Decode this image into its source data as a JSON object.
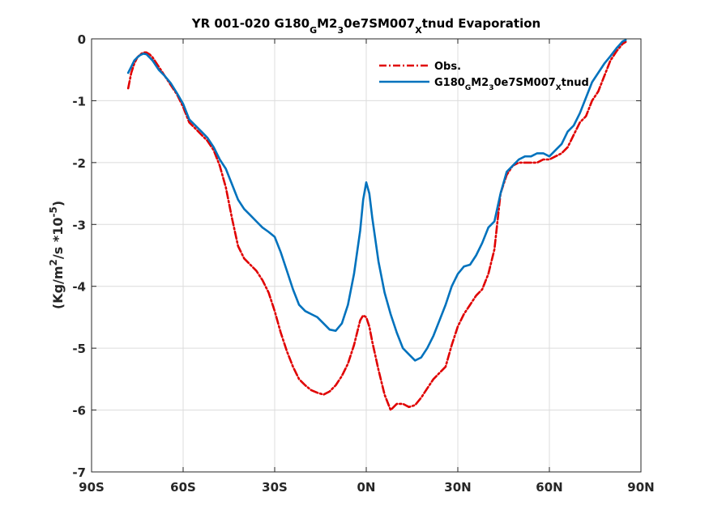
{
  "chart_data": {
    "type": "line",
    "title": {
      "parts": [
        {
          "text": "YR 001-020 G180",
          "shift": "none"
        },
        {
          "text": "G",
          "shift": "sub"
        },
        {
          "text": "M2",
          "shift": "none"
        },
        {
          "text": "3",
          "shift": "sub"
        },
        {
          "text": "0e7SM007",
          "shift": "none"
        },
        {
          "text": "X",
          "shift": "sub"
        },
        {
          "text": "tnud Evaporation",
          "shift": "none"
        }
      ]
    },
    "ylabel": {
      "parts": [
        {
          "text": "(Kg/m",
          "shift": "none"
        },
        {
          "text": "2",
          "shift": "super"
        },
        {
          "text": "/s *10",
          "shift": "none"
        },
        {
          "text": "-5",
          "shift": "super"
        },
        {
          "text": ")",
          "shift": "none"
        }
      ]
    },
    "xlabel": "",
    "xlim": [
      -90,
      90
    ],
    "ylim": [
      -7,
      0
    ],
    "x_ticks": [
      {
        "value": -90,
        "label": "90S"
      },
      {
        "value": -60,
        "label": "60S"
      },
      {
        "value": -30,
        "label": "30S"
      },
      {
        "value": 0,
        "label": "0N"
      },
      {
        "value": 30,
        "label": "30N"
      },
      {
        "value": 60,
        "label": "60N"
      },
      {
        "value": 90,
        "label": "90N"
      }
    ],
    "y_ticks": [
      {
        "value": 0,
        "label": "0"
      },
      {
        "value": -1,
        "label": "-1"
      },
      {
        "value": -2,
        "label": "-2"
      },
      {
        "value": -3,
        "label": "-3"
      },
      {
        "value": -4,
        "label": "-4"
      },
      {
        "value": -5,
        "label": "-5"
      },
      {
        "value": -6,
        "label": "-6"
      },
      {
        "value": -7,
        "label": "-7"
      }
    ],
    "grid": true,
    "legend_position": "top-right",
    "series": [
      {
        "name": "Obs.",
        "name_parts": [
          {
            "text": "Obs.",
            "shift": "none"
          }
        ],
        "color": "#e00000",
        "style": "dashdot",
        "x": [
          -78,
          -77,
          -76,
          -75,
          -74,
          -73,
          -72,
          -71,
          -70,
          -68,
          -66,
          -64,
          -62,
          -60,
          -58,
          -56,
          -54,
          -52,
          -50,
          -48,
          -46,
          -44,
          -42,
          -40,
          -38,
          -36,
          -34,
          -32,
          -30,
          -28,
          -26,
          -24,
          -22,
          -20,
          -18,
          -16,
          -14,
          -12,
          -10,
          -8,
          -6,
          -4,
          -2,
          -1,
          0,
          1,
          2,
          4,
          6,
          8,
          10,
          12,
          14,
          16,
          18,
          20,
          22,
          24,
          26,
          28,
          30,
          32,
          34,
          36,
          38,
          40,
          42,
          44,
          46,
          48,
          50,
          52,
          54,
          56,
          58,
          60,
          62,
          64,
          66,
          68,
          70,
          72,
          74,
          76,
          78,
          80,
          82,
          84,
          85
        ],
        "values": [
          -0.8,
          -0.55,
          -0.4,
          -0.3,
          -0.25,
          -0.22,
          -0.22,
          -0.25,
          -0.3,
          -0.45,
          -0.6,
          -0.75,
          -0.9,
          -1.1,
          -1.35,
          -1.45,
          -1.55,
          -1.65,
          -1.8,
          -2.05,
          -2.4,
          -2.9,
          -3.35,
          -3.55,
          -3.65,
          -3.75,
          -3.9,
          -4.1,
          -4.4,
          -4.75,
          -5.05,
          -5.3,
          -5.5,
          -5.6,
          -5.68,
          -5.72,
          -5.75,
          -5.7,
          -5.6,
          -5.45,
          -5.25,
          -4.95,
          -4.55,
          -4.47,
          -4.5,
          -4.65,
          -4.9,
          -5.35,
          -5.75,
          -6.0,
          -5.9,
          -5.9,
          -5.95,
          -5.92,
          -5.8,
          -5.65,
          -5.5,
          -5.4,
          -5.3,
          -4.95,
          -4.65,
          -4.45,
          -4.3,
          -4.15,
          -4.05,
          -3.8,
          -3.4,
          -2.5,
          -2.2,
          -2.05,
          -2.0,
          -2.0,
          -2.0,
          -2.0,
          -1.95,
          -1.95,
          -1.9,
          -1.85,
          -1.75,
          -1.55,
          -1.35,
          -1.25,
          -1.0,
          -0.85,
          -0.6,
          -0.35,
          -0.2,
          -0.08,
          -0.05
        ]
      },
      {
        "name": "G180GM230e7SM007Xtnud",
        "name_parts": [
          {
            "text": "G180",
            "shift": "none"
          },
          {
            "text": "G",
            "shift": "sub"
          },
          {
            "text": "M2",
            "shift": "none"
          },
          {
            "text": "3",
            "shift": "sub"
          },
          {
            "text": "0e7SM007",
            "shift": "none"
          },
          {
            "text": "X",
            "shift": "sub"
          },
          {
            "text": "tnud",
            "shift": "none"
          }
        ],
        "color": "#0072bd",
        "style": "solid",
        "x": [
          -78,
          -77,
          -76,
          -75,
          -74,
          -73,
          -72,
          -71,
          -70,
          -68,
          -66,
          -64,
          -62,
          -60,
          -58,
          -56,
          -54,
          -52,
          -50,
          -48,
          -46,
          -44,
          -42,
          -40,
          -38,
          -36,
          -34,
          -32,
          -30,
          -28,
          -26,
          -24,
          -22,
          -20,
          -18,
          -16,
          -14,
          -12,
          -10,
          -8,
          -6,
          -4,
          -2,
          -1,
          0,
          1,
          2,
          4,
          6,
          8,
          10,
          12,
          14,
          16,
          18,
          20,
          22,
          24,
          26,
          28,
          30,
          32,
          34,
          36,
          38,
          40,
          42,
          44,
          46,
          48,
          50,
          52,
          54,
          56,
          58,
          60,
          62,
          64,
          66,
          68,
          70,
          72,
          74,
          76,
          78,
          80,
          82,
          84,
          85
        ],
        "values": [
          -0.55,
          -0.45,
          -0.35,
          -0.3,
          -0.26,
          -0.24,
          -0.25,
          -0.3,
          -0.35,
          -0.5,
          -0.6,
          -0.72,
          -0.88,
          -1.05,
          -1.3,
          -1.4,
          -1.5,
          -1.6,
          -1.75,
          -1.95,
          -2.1,
          -2.35,
          -2.6,
          -2.75,
          -2.85,
          -2.95,
          -3.05,
          -3.12,
          -3.2,
          -3.45,
          -3.75,
          -4.05,
          -4.3,
          -4.4,
          -4.45,
          -4.5,
          -4.6,
          -4.7,
          -4.72,
          -4.6,
          -4.3,
          -3.8,
          -3.1,
          -2.6,
          -2.32,
          -2.5,
          -2.9,
          -3.6,
          -4.1,
          -4.45,
          -4.75,
          -5.0,
          -5.1,
          -5.2,
          -5.15,
          -5.0,
          -4.8,
          -4.55,
          -4.3,
          -4.0,
          -3.8,
          -3.68,
          -3.65,
          -3.5,
          -3.3,
          -3.05,
          -2.95,
          -2.5,
          -2.15,
          -2.05,
          -1.95,
          -1.9,
          -1.9,
          -1.85,
          -1.85,
          -1.9,
          -1.8,
          -1.7,
          -1.5,
          -1.4,
          -1.2,
          -0.95,
          -0.7,
          -0.55,
          -0.4,
          -0.28,
          -0.15,
          -0.04,
          -0.02
        ]
      }
    ]
  }
}
